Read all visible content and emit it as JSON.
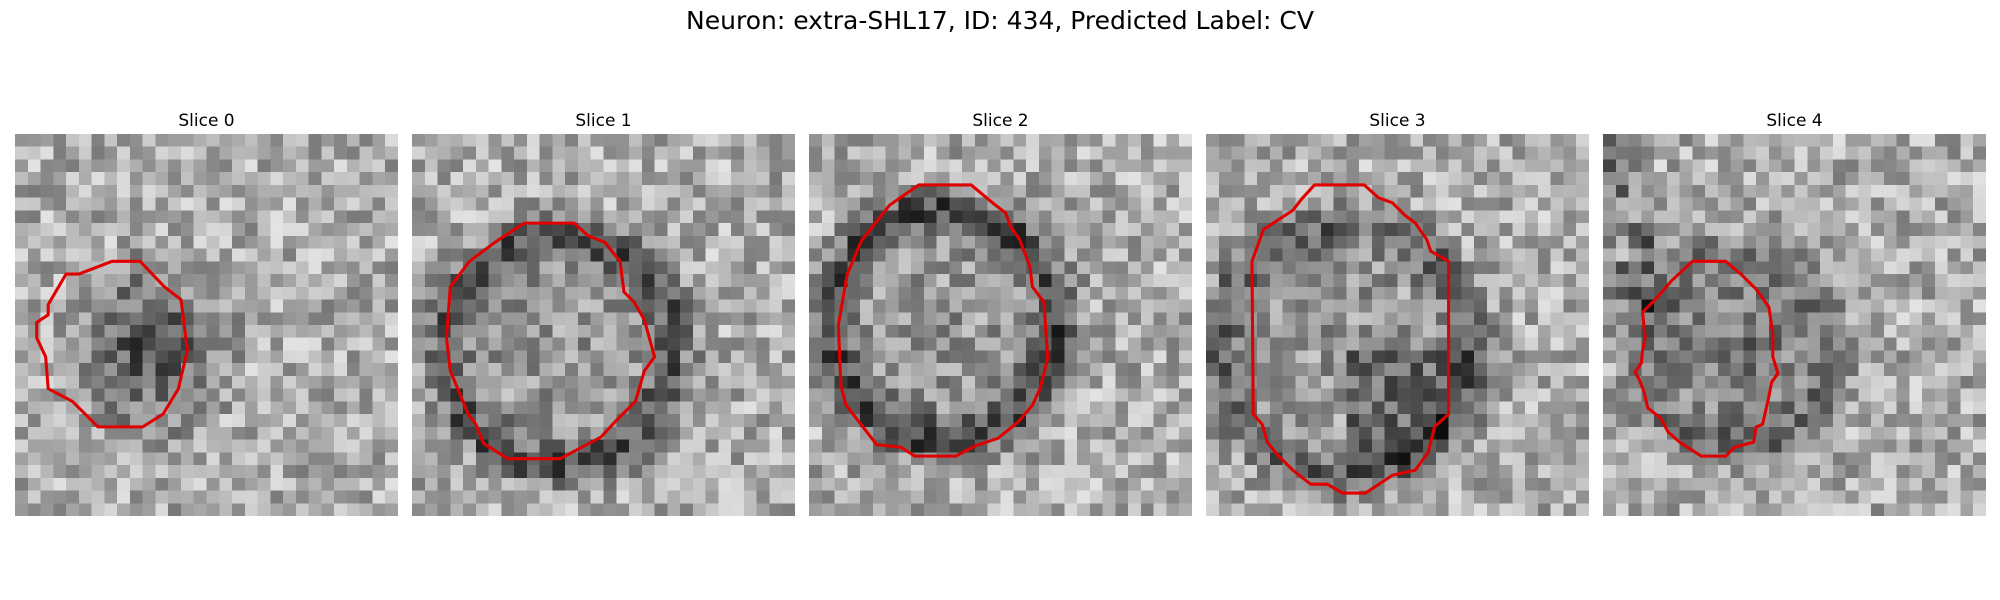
{
  "figure": {
    "title": "Neuron: extra-SHL17, ID: 434, Predicted Label: CV"
  },
  "colors": {
    "contour": "#e00000",
    "background": "#ffffff"
  },
  "panels": [
    {
      "title": "Slice 0",
      "contour_cells": [
        [
          4,
          11
        ],
        [
          5,
          11
        ],
        [
          7.6,
          10
        ],
        [
          9.8,
          10
        ],
        [
          11.7,
          12
        ],
        [
          13,
          13
        ],
        [
          13.5,
          17
        ],
        [
          12.8,
          20
        ],
        [
          11.6,
          22
        ],
        [
          10,
          23
        ],
        [
          6.5,
          23
        ],
        [
          4.5,
          21
        ],
        [
          2.6,
          20
        ],
        [
          2.4,
          17.5
        ],
        [
          1.7,
          16
        ],
        [
          1.7,
          14.8
        ],
        [
          2.6,
          14.2
        ],
        [
          2.6,
          13.4
        ]
      ],
      "seed": 11,
      "image": {
        "cx": 10.5,
        "cy": 17,
        "r": 7,
        "ring": 0,
        "dark_core": 0.35,
        "dark_side": "none"
      }
    },
    {
      "title": "Slice 1",
      "contour_cells": [
        [
          6.5,
          8.5
        ],
        [
          8.8,
          7
        ],
        [
          12.7,
          7
        ],
        [
          13.8,
          8
        ],
        [
          15.1,
          8.5
        ],
        [
          16.3,
          10
        ],
        [
          16.6,
          12.4
        ],
        [
          17.4,
          13.2
        ],
        [
          18.2,
          14.6
        ],
        [
          19,
          17.5
        ],
        [
          18.2,
          18.6
        ],
        [
          17.5,
          21
        ],
        [
          16,
          22.5
        ],
        [
          14.8,
          23.8
        ],
        [
          13.5,
          24.5
        ],
        [
          11.6,
          25.5
        ],
        [
          7.5,
          25.5
        ],
        [
          5.6,
          24.3
        ],
        [
          5,
          22.8
        ],
        [
          4.4,
          22
        ],
        [
          3.7,
          20.3
        ],
        [
          3,
          18.6
        ],
        [
          2.7,
          16
        ],
        [
          3,
          12
        ],
        [
          4.5,
          10
        ]
      ],
      "seed": 23,
      "image": {
        "cx": 11.5,
        "cy": 17,
        "r": 9,
        "ring": 0.5,
        "dark_core": 0.0,
        "dark_side": "none"
      }
    },
    {
      "title": "Slice 2",
      "contour_cells": [
        [
          6.3,
          5.6
        ],
        [
          8.6,
          4
        ],
        [
          12.7,
          4
        ],
        [
          14.5,
          5.5
        ],
        [
          15.4,
          6.2
        ],
        [
          15.8,
          7.3
        ],
        [
          16.5,
          8.3
        ],
        [
          17.3,
          10.4
        ],
        [
          17.5,
          12
        ],
        [
          18.4,
          13.2
        ],
        [
          18.7,
          17.6
        ],
        [
          18.1,
          20
        ],
        [
          17.5,
          21.3
        ],
        [
          16.4,
          22.6
        ],
        [
          14.8,
          23.9
        ],
        [
          13,
          24.5
        ],
        [
          11.5,
          25.3
        ],
        [
          8.3,
          25.3
        ],
        [
          7.2,
          24.6
        ],
        [
          5.3,
          24.4
        ],
        [
          4,
          22.7
        ],
        [
          2.9,
          21.3
        ],
        [
          2.5,
          19.8
        ],
        [
          2.3,
          15
        ],
        [
          3,
          11
        ],
        [
          4.1,
          8.4
        ]
      ],
      "seed": 37,
      "image": {
        "cx": 10.5,
        "cy": 15,
        "r": 9,
        "ring": 0.6,
        "dark_core": 0.0,
        "dark_side": "none"
      }
    },
    {
      "title": "Slice 3",
      "contour_cells": [
        [
          6.8,
          6
        ],
        [
          7.5,
          5.1
        ],
        [
          8.5,
          4
        ],
        [
          12.4,
          4
        ],
        [
          13.5,
          5
        ],
        [
          14.6,
          5.4
        ],
        [
          15.6,
          6.4
        ],
        [
          16.4,
          7
        ],
        [
          17.3,
          8.3
        ],
        [
          17.6,
          9.2
        ],
        [
          19,
          10
        ],
        [
          19,
          22
        ],
        [
          17.9,
          23
        ],
        [
          17.4,
          25
        ],
        [
          16.4,
          26.4
        ],
        [
          14.6,
          26.8
        ],
        [
          12.5,
          28.2
        ],
        [
          10.7,
          28.2
        ],
        [
          9.5,
          27.5
        ],
        [
          8.2,
          27.5
        ],
        [
          6.8,
          26.4
        ],
        [
          5.6,
          25.2
        ],
        [
          4.8,
          24.2
        ],
        [
          4.4,
          22.8
        ],
        [
          3.7,
          22
        ],
        [
          3.6,
          10
        ],
        [
          4.5,
          7.5
        ]
      ],
      "seed": 53,
      "image": {
        "cx": 11,
        "cy": 17,
        "r": 10,
        "ring": 0.4,
        "dark_core": 0.0,
        "dark_side": "lower-right"
      }
    },
    {
      "title": "Slice 4",
      "contour_cells": [
        [
          7,
          10
        ],
        [
          7.8,
          10
        ],
        [
          9.6,
          10
        ],
        [
          10.8,
          11
        ],
        [
          12,
          12.2
        ],
        [
          13,
          13.6
        ],
        [
          13.3,
          15.8
        ],
        [
          13.3,
          17.5
        ],
        [
          13.7,
          18.8
        ],
        [
          13.2,
          19.5
        ],
        [
          13,
          20.6
        ],
        [
          12.5,
          22.8
        ],
        [
          12,
          23
        ],
        [
          11.8,
          24.2
        ],
        [
          10.3,
          24.6
        ],
        [
          9.6,
          25.3
        ],
        [
          7.7,
          25.3
        ],
        [
          6,
          24.2
        ],
        [
          5.1,
          23.4
        ],
        [
          4.5,
          22.3
        ],
        [
          3.5,
          21.5
        ],
        [
          3.2,
          20.2
        ],
        [
          2.8,
          19.2
        ],
        [
          2.5,
          18.7
        ],
        [
          3,
          18
        ],
        [
          3.1,
          17
        ],
        [
          3.3,
          16
        ],
        [
          3.1,
          14
        ],
        [
          4.1,
          13
        ],
        [
          5.4,
          11.5
        ]
      ],
      "seed": 71,
      "image": {
        "cx": 10.5,
        "cy": 17,
        "r": 7.5,
        "ring": 0.3,
        "dark_core": 0.2,
        "dark_side": "upper-left"
      }
    }
  ]
}
